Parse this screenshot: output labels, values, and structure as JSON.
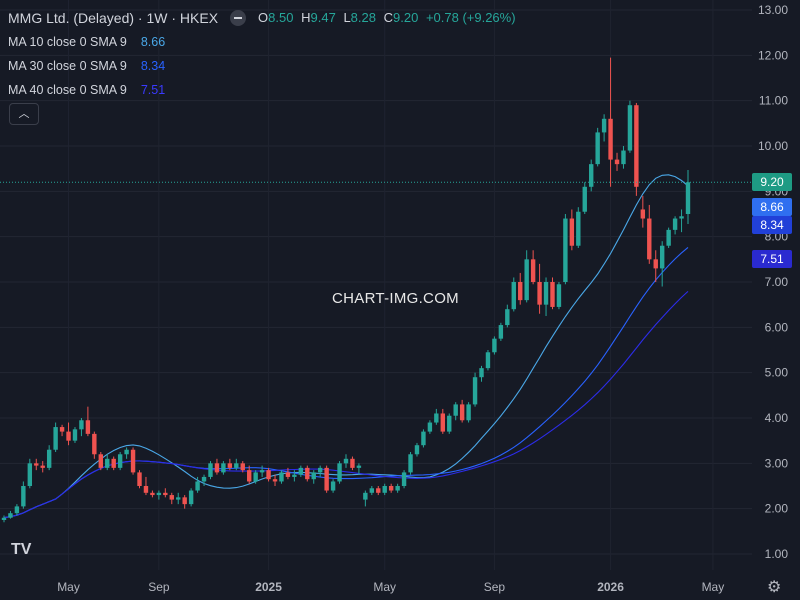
{
  "header": {
    "title": "MMG Ltd. (Delayed) · 1W · HKEX",
    "ohlc": [
      {
        "k": "O",
        "v": "8.50"
      },
      {
        "k": "H",
        "v": "9.47"
      },
      {
        "k": "L",
        "v": "8.28"
      },
      {
        "k": "C",
        "v": "9.20"
      }
    ],
    "change": "+0.78 (+9.26%)"
  },
  "indicators": [
    {
      "label": "MA 10 close 0 SMA 9",
      "value": "8.66",
      "color": "#4aa8e8"
    },
    {
      "label": "MA 30 close 0 SMA 9",
      "value": "8.34",
      "color": "#2962ff"
    },
    {
      "label": "MA 40 close 0 SMA 9",
      "value": "7.51",
      "color": "#2c2ce8"
    }
  ],
  "collapse_icon": "chevron-up-icon",
  "watermark": "CHART-IMG.COM",
  "logo": "TV",
  "settings_icon": "gear-icon",
  "colors": {
    "background": "#161a25",
    "up": "#26a69a",
    "down": "#ef5350",
    "price_line": "#26a69a"
  },
  "chart_data": {
    "type": "candlestick",
    "y_ticks": [
      "1.00",
      "2.00",
      "3.00",
      "4.00",
      "5.00",
      "6.00",
      "7.00",
      "8.00",
      "9.00",
      "10.00",
      "11.00",
      "12.00",
      "13.00"
    ],
    "x_ticks": [
      "May",
      "Sep",
      "2025",
      "May",
      "Sep",
      "2026",
      "May"
    ],
    "ylim": [
      0.7,
      13.2
    ],
    "grid": true,
    "last_price_label": "9.20",
    "ma_labels": [
      "8.66",
      "8.34",
      "7.51"
    ],
    "candles": [
      [
        1.75,
        1.85,
        1.7,
        1.8
      ],
      [
        1.8,
        1.95,
        1.78,
        1.9
      ],
      [
        1.9,
        2.1,
        1.85,
        2.05
      ],
      [
        2.05,
        2.6,
        2.0,
        2.5
      ],
      [
        2.5,
        3.1,
        2.45,
        3.0
      ],
      [
        3.0,
        3.1,
        2.85,
        2.95
      ],
      [
        2.95,
        3.05,
        2.8,
        2.9
      ],
      [
        2.9,
        3.4,
        2.85,
        3.3
      ],
      [
        3.3,
        3.9,
        3.25,
        3.8
      ],
      [
        3.8,
        3.85,
        3.6,
        3.7
      ],
      [
        3.7,
        3.9,
        3.4,
        3.5
      ],
      [
        3.5,
        3.8,
        3.45,
        3.75
      ],
      [
        3.75,
        4.0,
        3.6,
        3.95
      ],
      [
        3.95,
        4.25,
        3.6,
        3.65
      ],
      [
        3.65,
        3.7,
        3.1,
        3.2
      ],
      [
        3.2,
        3.25,
        2.85,
        2.9
      ],
      [
        2.9,
        3.2,
        2.85,
        3.1
      ],
      [
        3.1,
        3.15,
        2.85,
        2.9
      ],
      [
        2.9,
        3.25,
        2.85,
        3.2
      ],
      [
        3.2,
        3.35,
        3.1,
        3.3
      ],
      [
        3.3,
        3.35,
        2.75,
        2.8
      ],
      [
        2.8,
        2.85,
        2.45,
        2.5
      ],
      [
        2.5,
        2.7,
        2.3,
        2.35
      ],
      [
        2.35,
        2.4,
        2.25,
        2.3
      ],
      [
        2.3,
        2.4,
        2.2,
        2.35
      ],
      [
        2.35,
        2.45,
        2.25,
        2.3
      ],
      [
        2.3,
        2.35,
        2.1,
        2.2
      ],
      [
        2.2,
        2.35,
        2.1,
        2.25
      ],
      [
        2.25,
        2.3,
        2.0,
        2.1
      ],
      [
        2.1,
        2.45,
        2.05,
        2.4
      ],
      [
        2.4,
        2.7,
        2.35,
        2.6
      ],
      [
        2.6,
        2.75,
        2.5,
        2.7
      ],
      [
        2.7,
        3.05,
        2.65,
        3.0
      ],
      [
        3.0,
        3.1,
        2.75,
        2.8
      ],
      [
        2.8,
        3.05,
        2.75,
        3.0
      ],
      [
        3.0,
        3.1,
        2.85,
        2.9
      ],
      [
        2.9,
        3.1,
        2.85,
        3.0
      ],
      [
        3.0,
        3.05,
        2.8,
        2.85
      ],
      [
        2.85,
        2.95,
        2.55,
        2.6
      ],
      [
        2.6,
        2.85,
        2.55,
        2.8
      ],
      [
        2.8,
        2.95,
        2.7,
        2.85
      ],
      [
        2.85,
        2.9,
        2.6,
        2.65
      ],
      [
        2.65,
        2.75,
        2.5,
        2.6
      ],
      [
        2.6,
        2.85,
        2.55,
        2.8
      ],
      [
        2.8,
        2.9,
        2.65,
        2.7
      ],
      [
        2.7,
        2.85,
        2.6,
        2.75
      ],
      [
        2.75,
        2.95,
        2.7,
        2.9
      ],
      [
        2.9,
        2.95,
        2.6,
        2.65
      ],
      [
        2.65,
        2.85,
        2.55,
        2.8
      ],
      [
        2.8,
        2.95,
        2.7,
        2.9
      ],
      [
        2.9,
        2.95,
        2.35,
        2.4
      ],
      [
        2.4,
        2.65,
        2.35,
        2.6
      ],
      [
        2.6,
        3.05,
        2.55,
        3.0
      ],
      [
        3.0,
        3.2,
        2.9,
        3.1
      ],
      [
        3.1,
        3.15,
        2.85,
        2.9
      ],
      [
        2.9,
        3.0,
        2.75,
        2.95
      ],
      [
        2.2,
        2.4,
        2.05,
        2.35
      ],
      [
        2.35,
        2.5,
        2.3,
        2.45
      ],
      [
        2.45,
        2.5,
        2.3,
        2.35
      ],
      [
        2.35,
        2.55,
        2.3,
        2.5
      ],
      [
        2.5,
        2.55,
        2.35,
        2.4
      ],
      [
        2.4,
        2.55,
        2.35,
        2.5
      ],
      [
        2.5,
        2.85,
        2.45,
        2.8
      ],
      [
        2.8,
        3.25,
        2.75,
        3.2
      ],
      [
        3.2,
        3.45,
        3.15,
        3.4
      ],
      [
        3.4,
        3.75,
        3.35,
        3.7
      ],
      [
        3.7,
        3.95,
        3.65,
        3.9
      ],
      [
        3.9,
        4.2,
        3.85,
        4.1
      ],
      [
        4.1,
        4.2,
        3.65,
        3.7
      ],
      [
        3.7,
        4.1,
        3.65,
        4.05
      ],
      [
        4.05,
        4.35,
        3.95,
        4.3
      ],
      [
        4.3,
        4.4,
        3.9,
        3.95
      ],
      [
        3.95,
        4.35,
        3.9,
        4.3
      ],
      [
        4.3,
        5.0,
        4.25,
        4.9
      ],
      [
        4.9,
        5.15,
        4.8,
        5.1
      ],
      [
        5.1,
        5.5,
        5.05,
        5.45
      ],
      [
        5.45,
        5.8,
        5.4,
        5.75
      ],
      [
        5.75,
        6.1,
        5.7,
        6.05
      ],
      [
        6.05,
        6.5,
        6.0,
        6.4
      ],
      [
        6.4,
        7.1,
        6.35,
        7.0
      ],
      [
        7.0,
        7.2,
        6.5,
        6.6
      ],
      [
        6.6,
        7.7,
        6.55,
        7.5
      ],
      [
        7.5,
        7.7,
        6.95,
        7.0
      ],
      [
        7.0,
        7.4,
        6.3,
        6.5
      ],
      [
        6.5,
        7.1,
        6.25,
        7.0
      ],
      [
        7.0,
        7.1,
        6.4,
        6.45
      ],
      [
        6.45,
        7.0,
        6.4,
        6.95
      ],
      [
        7.0,
        8.5,
        6.95,
        8.4
      ],
      [
        8.4,
        8.6,
        7.7,
        7.8
      ],
      [
        7.8,
        8.65,
        7.75,
        8.55
      ],
      [
        8.55,
        9.2,
        8.5,
        9.1
      ],
      [
        9.1,
        9.7,
        9.0,
        9.6
      ],
      [
        9.6,
        10.4,
        9.55,
        10.3
      ],
      [
        10.3,
        10.7,
        10.1,
        10.6
      ],
      [
        10.6,
        11.95,
        9.1,
        9.7
      ],
      [
        9.7,
        9.85,
        9.45,
        9.6
      ],
      [
        9.6,
        10.0,
        9.5,
        9.9
      ],
      [
        9.9,
        11.0,
        9.85,
        10.9
      ],
      [
        10.9,
        10.95,
        8.9,
        9.1
      ],
      [
        8.6,
        8.9,
        8.2,
        8.4
      ],
      [
        8.4,
        8.7,
        7.4,
        7.5
      ],
      [
        7.5,
        7.7,
        7.0,
        7.3
      ],
      [
        7.3,
        7.9,
        6.9,
        7.8
      ],
      [
        7.8,
        8.2,
        7.75,
        8.15
      ],
      [
        8.15,
        8.45,
        8.05,
        8.4
      ],
      [
        8.4,
        8.6,
        8.1,
        8.45
      ],
      [
        8.5,
        9.47,
        8.28,
        9.2
      ]
    ]
  }
}
